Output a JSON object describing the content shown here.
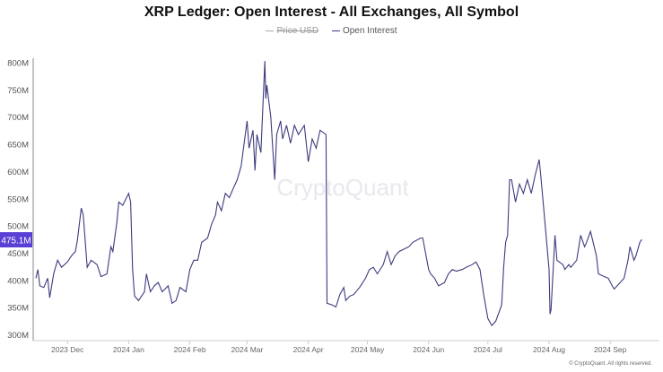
{
  "chart_data": {
    "type": "line",
    "title": "XRP Ledger: Open Interest - All Exchanges, All Symbol",
    "legend": [
      {
        "name": "Price USD",
        "hidden": true,
        "color": "#aaaaaa"
      },
      {
        "name": "Open Interest",
        "hidden": false,
        "color": "#3d3b7e"
      }
    ],
    "legend_position": "top-center",
    "x_unit": "days since 2023-11-15",
    "xlim": [
      0,
      315
    ],
    "ylim": [
      300,
      820
    ],
    "yticks": [
      300,
      350,
      400,
      450,
      500,
      550,
      600,
      650,
      700,
      750,
      800
    ],
    "ytick_labels": [
      "300M",
      "350M",
      "400M",
      "450M",
      "500M",
      "550M",
      "600M",
      "650M",
      "700M",
      "750M",
      "800M"
    ],
    "xticks": [
      16,
      47,
      78,
      107,
      138,
      168,
      199,
      229,
      260,
      291
    ],
    "xtick_labels": [
      "2023 Dec",
      "2024 Jan",
      "2024 Feb",
      "2024 Mar",
      "2024 Apr",
      "2024 May",
      "2024 Jun",
      "2024 Jul",
      "2024 Aug",
      "2024 Sep"
    ],
    "current_value_label": "475.1M",
    "current_value": 475.1,
    "grid": false,
    "series": [
      {
        "name": "Open Interest",
        "unit": "M USD",
        "x": [
          0,
          1,
          2,
          4,
          6,
          7,
          9,
          11,
          13,
          16,
          18,
          20,
          21,
          22,
          23,
          24,
          26,
          28,
          31,
          33,
          36,
          38,
          39,
          41,
          42,
          44,
          47,
          48,
          49,
          50,
          52,
          55,
          56,
          58,
          60,
          62,
          64,
          67,
          69,
          71,
          73,
          76,
          78,
          80,
          82,
          84,
          87,
          89,
          91,
          92,
          94,
          96,
          98,
          100,
          102,
          104,
          107,
          108,
          110,
          111,
          112,
          114,
          116,
          116.5,
          117,
          119,
          121,
          122,
          124,
          125,
          127,
          129,
          131,
          133,
          136,
          138,
          140,
          142,
          144,
          147,
          147.5,
          150,
          152,
          154,
          156,
          157,
          159,
          161,
          164,
          167,
          169,
          171,
          173,
          176,
          178,
          180,
          182,
          184,
          189,
          191,
          195,
          196,
          199,
          200,
          202,
          204,
          207,
          209,
          211,
          213,
          216,
          218,
          221,
          223,
          225,
          227,
          229,
          231,
          233,
          236,
          237,
          238,
          239,
          240,
          241,
          243,
          245,
          247,
          249,
          251,
          253,
          255,
          256,
          258,
          260,
          260.5,
          261,
          263,
          264,
          267,
          268,
          270,
          271,
          274,
          276,
          278,
          279,
          281,
          284,
          285,
          288,
          290,
          292,
          293,
          296,
          298,
          300,
          301,
          303,
          304,
          306,
          307
        ],
        "values": [
          404,
          420,
          390,
          387,
          404,
          368,
          412,
          437,
          424,
          434,
          445,
          453,
          473,
          503,
          533,
          520,
          424,
          437,
          429,
          407,
          412,
          462,
          453,
          506,
          544,
          538,
          560,
          544,
          420,
          371,
          363,
          379,
          412,
          379,
          390,
          396,
          379,
          390,
          358,
          363,
          387,
          379,
          420,
          437,
          437,
          470,
          478,
          503,
          520,
          544,
          528,
          560,
          552,
          569,
          585,
          610,
          693,
          643,
          676,
          602,
          668,
          635,
          803,
          734,
          759,
          701,
          585,
          668,
          693,
          660,
          685,
          652,
          685,
          668,
          685,
          618,
          660,
          643,
          676,
          668,
          358,
          355,
          351,
          374,
          387,
          363,
          371,
          374,
          387,
          404,
          420,
          424,
          412,
          429,
          453,
          429,
          445,
          453,
          462,
          470,
          478,
          478,
          420,
          412,
          404,
          390,
          396,
          412,
          420,
          417,
          420,
          424,
          429,
          434,
          420,
          371,
          330,
          317,
          325,
          355,
          424,
          470,
          483,
          585,
          585,
          544,
          577,
          560,
          585,
          560,
          594,
          622,
          585,
          503,
          420,
          338,
          346,
          483,
          437,
          429,
          420,
          429,
          424,
          437,
          483,
          462,
          470,
          490,
          445,
          412,
          407,
          404,
          390,
          384,
          396,
          404,
          437,
          462,
          437,
          445,
          470,
          475.1
        ]
      }
    ]
  },
  "watermark": "CryptoQuant",
  "copyright": "© CryptoQuant. All rights reserved."
}
